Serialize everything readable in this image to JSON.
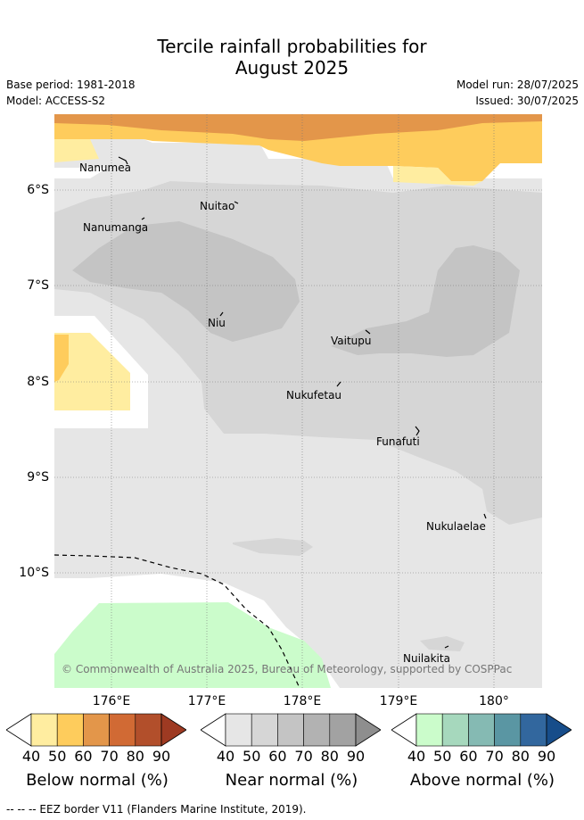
{
  "title_line1": "Tercile rainfall probabilities for",
  "title_line2": "August 2025",
  "base_period": "Base period: 1981-2018",
  "model": "Model: ACCESS-S2",
  "model_run": "Model run: 28/07/2025",
  "issued": "Issued: 30/07/2025",
  "lat_labels": [
    "6°S",
    "7°S",
    "8°S",
    "9°S",
    "10°S"
  ],
  "lon_labels": [
    "176°E",
    "177°E",
    "178°E",
    "179°E",
    "180°"
  ],
  "places": {
    "nanumea": "Nanumea",
    "nuitao": "Nuitao",
    "nanumanga": "Nanumanga",
    "niu": "Niu",
    "vaitupu": "Vaitupu",
    "nukufetau": "Nukufetau",
    "funafuti": "Funafuti",
    "nukulaelae": "Nukulaelae",
    "nuilakita": "Nuilakita"
  },
  "copyright": "© Commonwealth of Australia 2025, Bureau of Meteorology, supported by COSPPac",
  "colorbars": {
    "below": {
      "title": "Below normal (%)",
      "colors": [
        "#ffeda0",
        "#fecc5c",
        "#e3964a",
        "#d16a34",
        "#b24f2b",
        "#9e3a22"
      ]
    },
    "near": {
      "title": "Near normal (%)",
      "colors": [
        "#e6e6e6",
        "#d6d6d6",
        "#c4c4c4",
        "#b2b2b2",
        "#a2a2a2",
        "#8e8e8e"
      ]
    },
    "above": {
      "title": "Above normal (%)",
      "colors": [
        "#cbfccb",
        "#a6d8bd",
        "#85bab3",
        "#5a96a3",
        "#32679e",
        "#174d8a"
      ]
    },
    "ticks": [
      "40",
      "50",
      "60",
      "70",
      "80",
      "90"
    ]
  },
  "footer": "-- -- -- EEZ border V11 (Flanders Marine Institute, 2019)."
}
